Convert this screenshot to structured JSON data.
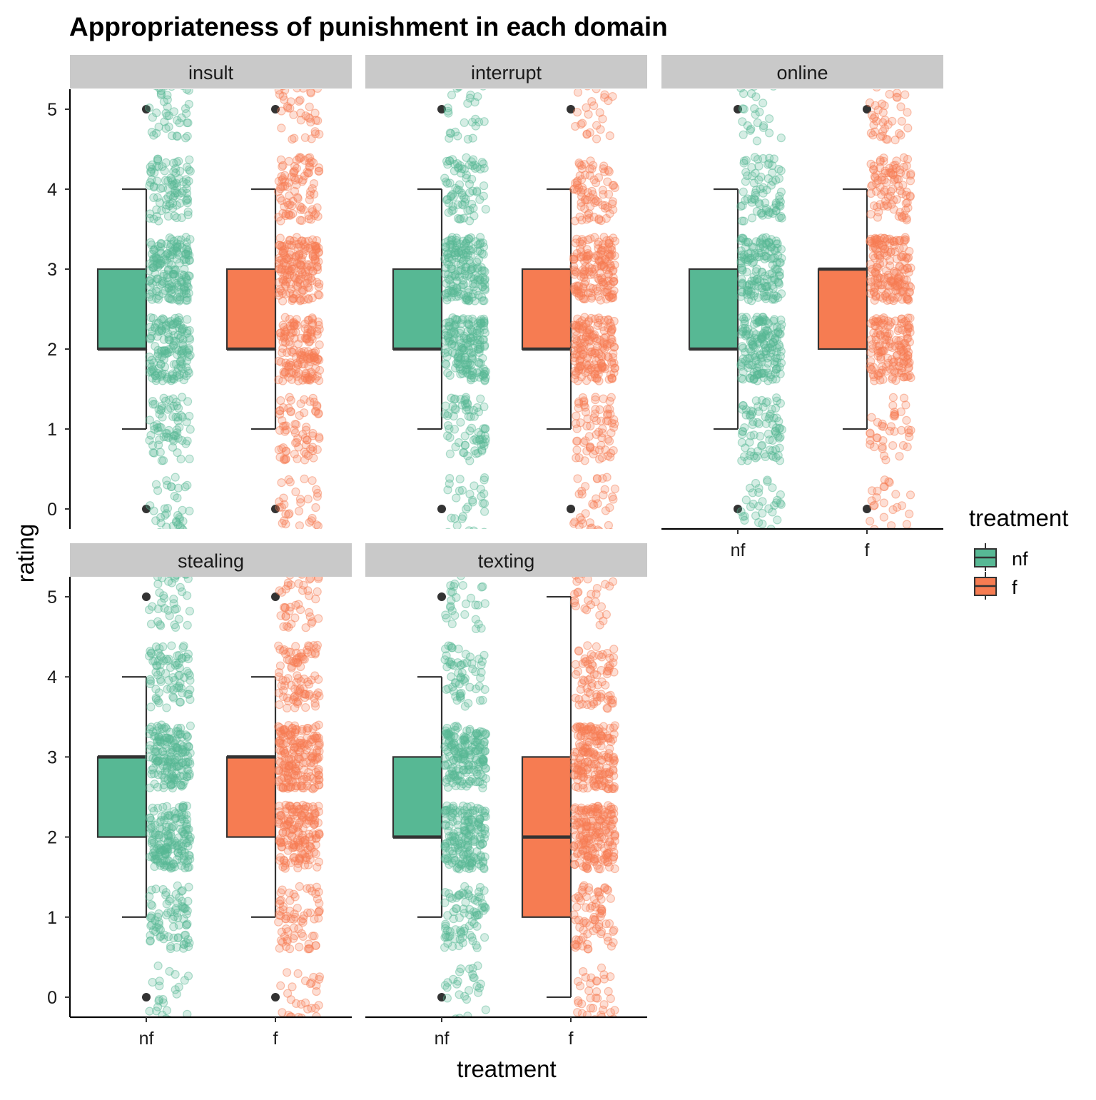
{
  "chart_data": {
    "type": "boxplot",
    "title": "Appropriateness of punishment in each domain",
    "xlabel": "treatment",
    "ylabel": "rating",
    "ylim": [
      -0.25,
      5.25
    ],
    "y_ticks": [
      0,
      1,
      2,
      3,
      4,
      5
    ],
    "categories": [
      "nf",
      "f"
    ],
    "legend": {
      "title": "treatment",
      "position": "right",
      "entries": [
        {
          "label": "nf",
          "color": "#57B894"
        },
        {
          "label": "f",
          "color": "#F67C52"
        }
      ]
    },
    "jitter_alpha": 0.25,
    "panels": [
      {
        "name": "insult",
        "groups": [
          {
            "treatment": "nf",
            "lower_whisker": 1,
            "q1": 2,
            "median": 2,
            "q3": 3,
            "upper_whisker": 4,
            "outliers": [
              0,
              5
            ]
          },
          {
            "treatment": "f",
            "lower_whisker": 1,
            "q1": 2,
            "median": 2,
            "q3": 3,
            "upper_whisker": 4,
            "outliers": [
              0,
              5
            ]
          }
        ]
      },
      {
        "name": "interrupt",
        "groups": [
          {
            "treatment": "nf",
            "lower_whisker": 1,
            "q1": 2,
            "median": 2,
            "q3": 3,
            "upper_whisker": 4,
            "outliers": [
              0,
              5
            ]
          },
          {
            "treatment": "f",
            "lower_whisker": 1,
            "q1": 2,
            "median": 2,
            "q3": 3,
            "upper_whisker": 4,
            "outliers": [
              0,
              5
            ]
          }
        ]
      },
      {
        "name": "online",
        "groups": [
          {
            "treatment": "nf",
            "lower_whisker": 1,
            "q1": 2,
            "median": 2,
            "q3": 3,
            "upper_whisker": 4,
            "outliers": [
              0,
              5
            ]
          },
          {
            "treatment": "f",
            "lower_whisker": 1,
            "q1": 2,
            "median": 3,
            "q3": 3,
            "upper_whisker": 4,
            "outliers": [
              0,
              5
            ]
          }
        ]
      },
      {
        "name": "stealing",
        "groups": [
          {
            "treatment": "nf",
            "lower_whisker": 1,
            "q1": 2,
            "median": 3,
            "q3": 3,
            "upper_whisker": 4,
            "outliers": [
              0,
              5
            ]
          },
          {
            "treatment": "f",
            "lower_whisker": 1,
            "q1": 2,
            "median": 3,
            "q3": 3,
            "upper_whisker": 4,
            "outliers": [
              0,
              5
            ]
          }
        ]
      },
      {
        "name": "texting",
        "groups": [
          {
            "treatment": "nf",
            "lower_whisker": 1,
            "q1": 2,
            "median": 2,
            "q3": 3,
            "upper_whisker": 4,
            "outliers": [
              0,
              5
            ]
          },
          {
            "treatment": "f",
            "lower_whisker": 0,
            "q1": 1,
            "median": 2,
            "q3": 3,
            "upper_whisker": 5,
            "outliers": []
          }
        ]
      }
    ],
    "jitter_counts": {
      "insult": {
        "nf": [
          40,
          70,
          150,
          170,
          90,
          45
        ],
        "f": [
          40,
          70,
          150,
          170,
          90,
          45
        ]
      },
      "interrupt": {
        "nf": [
          40,
          70,
          170,
          170,
          75,
          30
        ],
        "f": [
          40,
          70,
          170,
          160,
          75,
          30
        ]
      },
      "online": {
        "nf": [
          35,
          80,
          170,
          150,
          75,
          30
        ],
        "f": [
          30,
          40,
          150,
          165,
          90,
          40
        ]
      },
      "stealing": {
        "nf": [
          30,
          80,
          170,
          170,
          80,
          45
        ],
        "f": [
          30,
          70,
          160,
          190,
          90,
          50
        ]
      },
      "texting": {
        "nf": [
          35,
          80,
          175,
          175,
          60,
          30
        ],
        "f": [
          45,
          75,
          185,
          175,
          75,
          30
        ]
      }
    }
  }
}
